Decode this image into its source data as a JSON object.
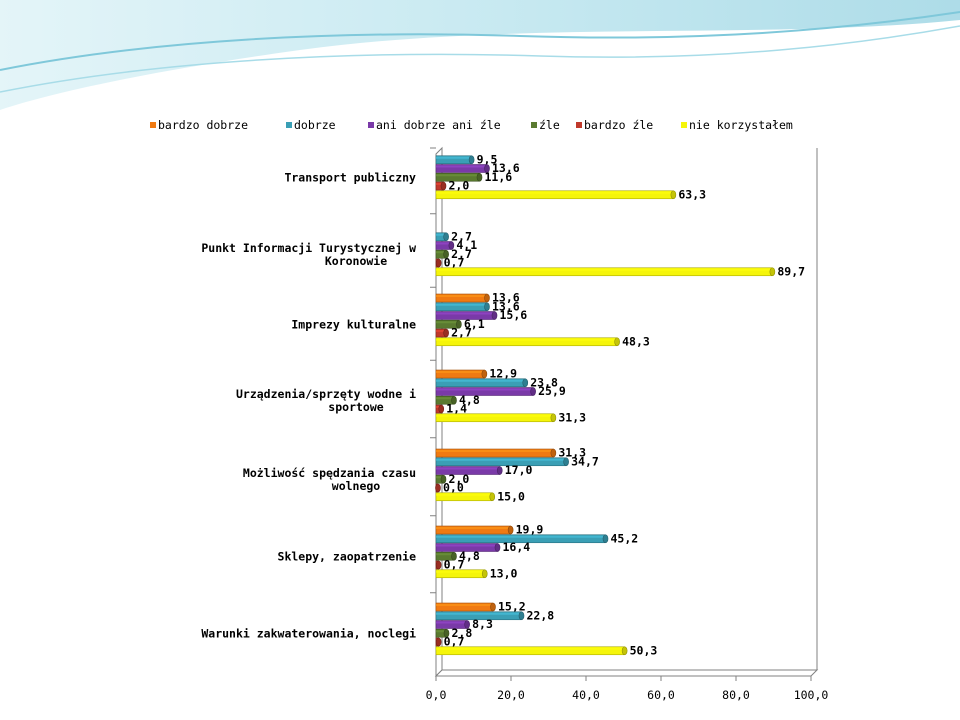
{
  "chart_data": {
    "type": "bar",
    "orientation": "horizontal",
    "title": "",
    "xlabel": "",
    "ylabel": "",
    "xlim": [
      0,
      100
    ],
    "x_ticks": [
      "0,0",
      "20,0",
      "40,0",
      "60,0",
      "80,0",
      "100,0"
    ],
    "legend_position": "top",
    "grid": false,
    "categories": [
      [
        "Transport publiczny"
      ],
      [
        "Punkt Informacji Turystycznej w",
        "Koronowie"
      ],
      [
        "Imprezy kulturalne"
      ],
      [
        "Urządzenia/sprzęty wodne i",
        "sportowe"
      ],
      [
        "Możliwość spędzania czasu",
        "wolnego"
      ],
      [
        "Sklepy, zaopatrzenie"
      ],
      [
        "Warunki zakwaterowania, noclegi"
      ]
    ],
    "series": [
      {
        "name": "bardzo dobrze",
        "color": "#f07a12",
        "values": [
          null,
          null,
          13.6,
          12.9,
          31.3,
          19.9,
          15.2
        ],
        "labels": [
          "",
          "",
          "13,6",
          "12,9",
          "31,3",
          "19,9",
          "15,2"
        ]
      },
      {
        "name": "dobrze",
        "color": "#3a9fb5",
        "values": [
          9.5,
          2.7,
          13.6,
          23.8,
          34.7,
          45.2,
          22.8
        ],
        "labels": [
          "9,5",
          "2,7",
          "13,6",
          "23,8",
          "34,7",
          "45,2",
          "22,8"
        ]
      },
      {
        "name": "ani dobrze ani źle",
        "color": "#7a3aa8",
        "values": [
          13.6,
          4.1,
          15.6,
          25.9,
          17.0,
          16.4,
          8.3
        ],
        "labels": [
          "13,6",
          "4,1",
          "15,6",
          "25,9",
          "17,0",
          "16,4",
          "8,3"
        ]
      },
      {
        "name": "źle",
        "color": "#5a7a30",
        "values": [
          11.6,
          2.7,
          6.1,
          4.8,
          2.0,
          4.8,
          2.8
        ],
        "labels": [
          "11,6",
          "2,7",
          "6,1",
          "4,8",
          "2,0",
          "4,8",
          "2,8"
        ]
      },
      {
        "name": "bardzo źle",
        "color": "#c0392b",
        "values": [
          2.0,
          0.7,
          2.7,
          1.4,
          0.0,
          0.7,
          0.7
        ],
        "labels": [
          "2,0",
          "0,7",
          "2,7",
          "1,4",
          "0,0",
          "0,7",
          "0,7"
        ]
      },
      {
        "name": "nie korzystałem",
        "color": "#f5f50a",
        "values": [
          63.3,
          89.7,
          48.3,
          31.3,
          15.0,
          13.0,
          50.3
        ],
        "labels": [
          "63,3",
          "89,7",
          "48,3",
          "31,3",
          "15,0",
          "13,0",
          "50,3"
        ]
      }
    ]
  }
}
